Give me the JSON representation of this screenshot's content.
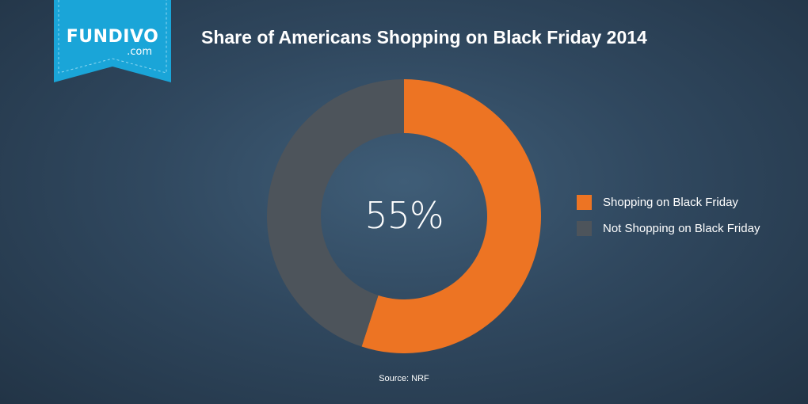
{
  "logo": {
    "name": "FUNDIVO",
    "suffix": ".com"
  },
  "title": "Share of Americans Shopping on Black Friday 2014",
  "center_label": "55%",
  "source": "Source: NRF",
  "colors": {
    "shopping": "#ed7423",
    "not_shopping": "#4d545b",
    "ribbon": "#1aa5d8"
  },
  "chart_data": {
    "type": "pie",
    "title": "Share of Americans Shopping on Black Friday 2014",
    "categories": [
      "Shopping on Black Friday",
      "Not Shopping on Black Friday"
    ],
    "values": [
      55,
      45
    ],
    "unit": "%",
    "style": "donut",
    "legend_position": "right"
  }
}
